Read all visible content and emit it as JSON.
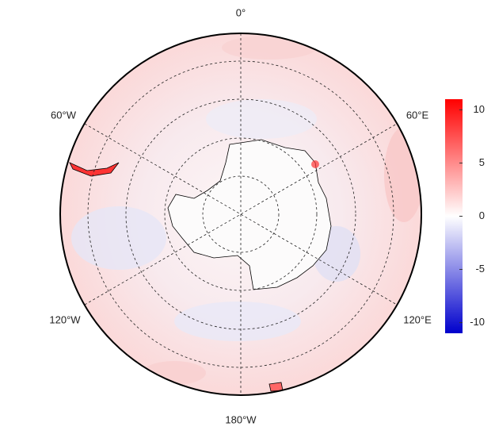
{
  "map": {
    "meridian_labels": [
      "0°",
      "60°E",
      "120°E",
      "180°W",
      "120°W",
      "60°W"
    ],
    "colorbar": {
      "lim": [
        -11,
        11
      ],
      "ticks": [
        -10,
        -5,
        0,
        5,
        10
      ],
      "colors": [
        "#0000cc",
        "#ffffff",
        "#ff0000"
      ]
    }
  }
}
